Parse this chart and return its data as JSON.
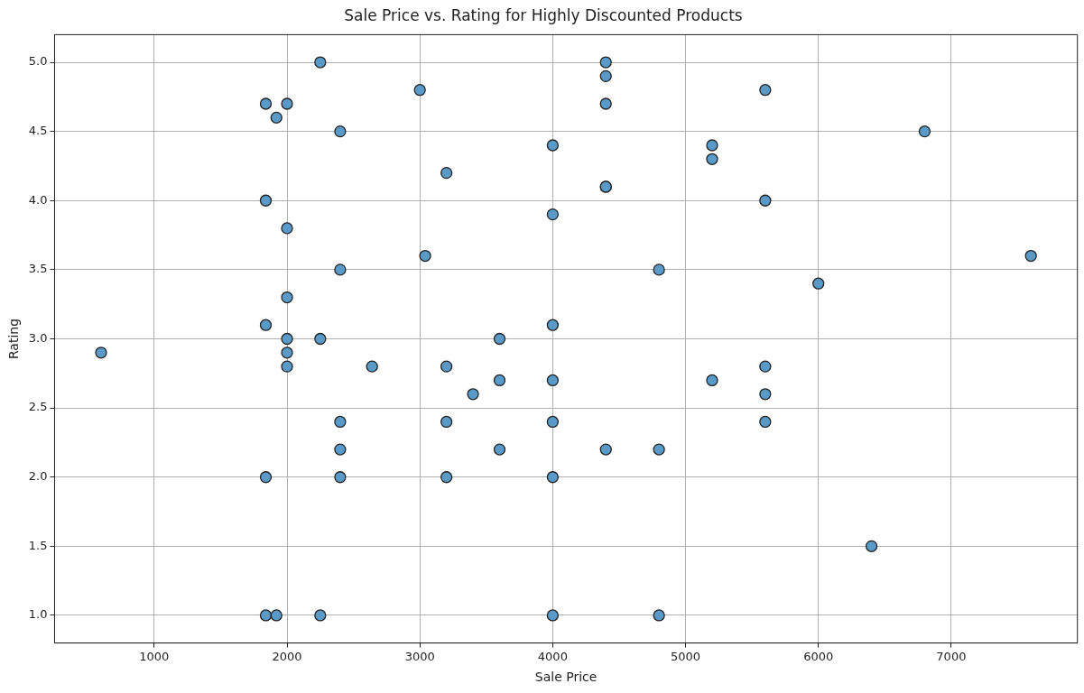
{
  "chart_data": {
    "type": "scatter",
    "title": "Sale Price vs. Rating for Highly Discounted Products",
    "xlabel": "Sale Price",
    "ylabel": "Rating",
    "xlim": [
      250,
      7950
    ],
    "xticks": [
      1000,
      2000,
      3000,
      4000,
      5000,
      6000,
      7000
    ],
    "ylim": [
      0.8,
      5.2
    ],
    "yticks": [
      {
        "value": 1,
        "label": "1.0"
      },
      {
        "value": 1.5,
        "label": "1.5"
      },
      {
        "value": 2,
        "label": "2.0"
      },
      {
        "value": 2.5,
        "label": "2.5"
      },
      {
        "value": 3,
        "label": "3.0"
      },
      {
        "value": 3.5,
        "label": "3.5"
      },
      {
        "value": 4,
        "label": "4.0"
      },
      {
        "value": 4.5,
        "label": "4.5"
      },
      {
        "value": 5,
        "label": "5.0"
      }
    ],
    "grid": true,
    "marker": "circle",
    "series": [
      {
        "color": "#5a9ac8",
        "x": [
          2250,
          3000,
          1840,
          2000,
          1920,
          2400,
          4000,
          3200,
          1840,
          4000,
          2000,
          3040,
          2400,
          2000,
          1840,
          2000,
          2250,
          3600,
          4000,
          600,
          2000,
          2000,
          2640,
          3200,
          3600,
          4000,
          3400,
          2400,
          3200,
          4000,
          2400,
          3600,
          2400,
          1840,
          3200,
          4000,
          1840,
          1920,
          2250,
          4000,
          4400,
          4400,
          4400,
          5600,
          6800,
          5200,
          5200,
          4400,
          4400,
          5600,
          4800,
          7600,
          6000,
          5200,
          5600,
          5600,
          5600,
          4400,
          4800,
          6400,
          4800
        ],
        "values": [
          5.0,
          4.8,
          4.7,
          4.7,
          4.6,
          4.5,
          4.4,
          4.2,
          4.0,
          3.9,
          3.8,
          3.6,
          3.5,
          3.3,
          3.1,
          3.0,
          3.0,
          3.0,
          3.1,
          2.9,
          2.9,
          2.8,
          2.8,
          2.8,
          2.7,
          2.7,
          2.6,
          2.4,
          2.4,
          2.4,
          2.2,
          2.2,
          2.0,
          2.0,
          2.0,
          2.0,
          1.0,
          1.0,
          1.0,
          1.0,
          5.0,
          4.9,
          4.7,
          4.8,
          4.5,
          4.4,
          4.3,
          4.1,
          4.1,
          4.0,
          3.5,
          3.6,
          3.4,
          2.7,
          2.8,
          2.6,
          2.4,
          2.2,
          2.2,
          1.5,
          1.0
        ]
      }
    ]
  }
}
